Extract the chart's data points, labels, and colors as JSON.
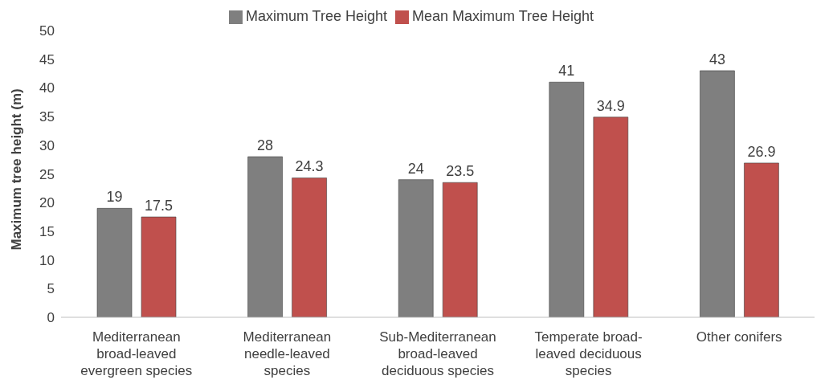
{
  "chart_data": {
    "type": "bar",
    "ylabel": "Maximum tree height (m)",
    "categories": [
      "Mediterranean broad-leaved evergreen species",
      "Mediterranean needle-leaved species",
      "Sub-Mediterranean broad-leaved deciduous species",
      "Temperate broad-leaved deciduous species",
      "Other conifers"
    ],
    "series": [
      {
        "name": "Maximum Tree Height",
        "color": "#7f7f7f",
        "values": [
          19,
          28,
          24,
          41,
          43
        ]
      },
      {
        "name": "Mean Maximum Tree Height",
        "color": "#c0504d",
        "values": [
          17.5,
          24.3,
          23.5,
          34.9,
          26.9
        ]
      }
    ],
    "ylim": [
      0,
      50
    ],
    "yticks": [
      0,
      5,
      10,
      15,
      20,
      25,
      30,
      35,
      40,
      45,
      50
    ],
    "grid": false,
    "legend": "top",
    "data_labels": true
  }
}
